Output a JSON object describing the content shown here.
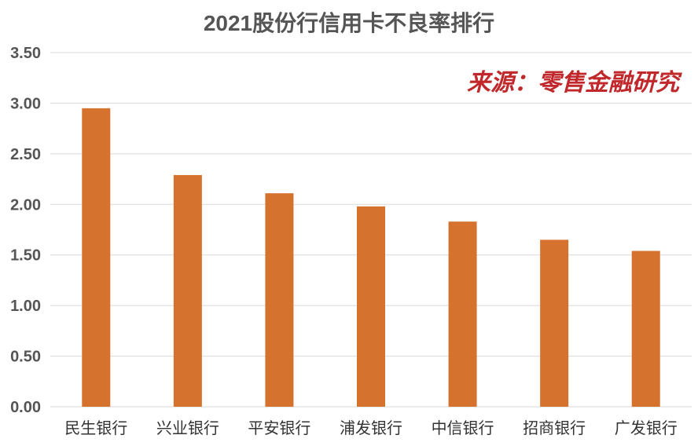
{
  "chart_data": {
    "type": "bar",
    "title": "2021股份行信用卡不良率排行",
    "source_note": "来源：零售金融研究",
    "categories": [
      "民生银行",
      "兴业银行",
      "平安银行",
      "浦发银行",
      "中信银行",
      "招商银行",
      "广发银行"
    ],
    "values": [
      2.95,
      2.29,
      2.11,
      1.98,
      1.83,
      1.65,
      1.54
    ],
    "ylim": [
      0,
      3.5
    ],
    "yticks": [
      "0.00",
      "0.50",
      "1.00",
      "1.50",
      "2.00",
      "2.50",
      "3.00",
      "3.50"
    ],
    "xlabel": "",
    "ylabel": "",
    "grid": true,
    "bar_color": "#D5732E",
    "grid_color": "#d9d9d9",
    "source_color": "#c0282b"
  }
}
